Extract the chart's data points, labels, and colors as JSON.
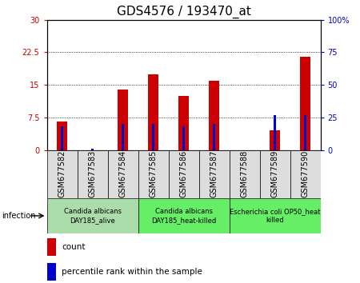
{
  "title": "GDS4576 / 193470_at",
  "samples": [
    "GSM677582",
    "GSM677583",
    "GSM677584",
    "GSM677585",
    "GSM677586",
    "GSM677587",
    "GSM677588",
    "GSM677589",
    "GSM677590"
  ],
  "counts": [
    6.5,
    0.0,
    14.0,
    17.5,
    12.5,
    16.0,
    0.0,
    4.5,
    21.5
  ],
  "percentile_ranks": [
    18.0,
    1.0,
    20.0,
    20.0,
    18.0,
    20.0,
    0.0,
    27.0,
    27.0
  ],
  "left_ylim": [
    0,
    30
  ],
  "right_ylim": [
    0,
    100
  ],
  "left_yticks": [
    0,
    7.5,
    15,
    22.5,
    30
  ],
  "right_yticks": [
    0,
    25,
    50,
    75,
    100
  ],
  "left_yticklabels": [
    "0",
    "7.5",
    "15",
    "22.5",
    "30"
  ],
  "right_yticklabels": [
    "0",
    "25",
    "50",
    "75",
    "100%"
  ],
  "bar_color": "#cc0000",
  "pct_color": "#0000cc",
  "left_label_color": "#cc0000",
  "right_label_color": "#0000cc",
  "groups": [
    {
      "label": "Candida albicans\nDAY185_alive",
      "start": 0,
      "end": 3,
      "color": "#aaddaa"
    },
    {
      "label": "Candida albicans\nDAY185_heat-killed",
      "start": 3,
      "end": 6,
      "color": "#66ee66"
    },
    {
      "label": "Escherichia coli OP50_heat\nkilled",
      "start": 6,
      "end": 9,
      "color": "#66ee66"
    }
  ],
  "infection_label": "infection",
  "legend_count": "count",
  "legend_pct": "percentile rank within the sample",
  "bar_width": 0.35,
  "pct_bar_width": 0.1,
  "tick_label_fontsize": 7,
  "title_fontsize": 11,
  "group_label_fontsize": 6.0
}
